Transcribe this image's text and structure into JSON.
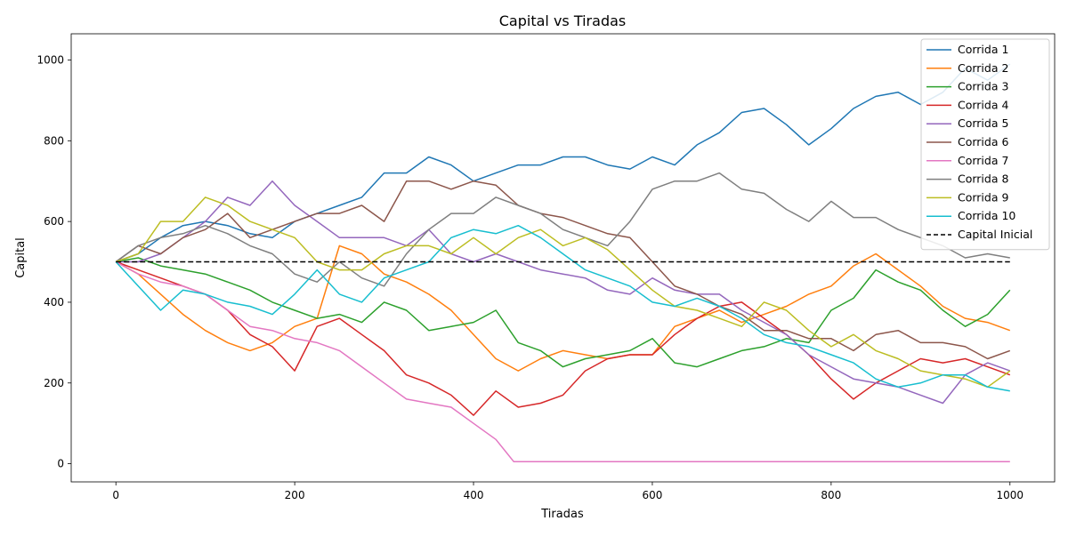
{
  "chart_data": {
    "type": "line",
    "title": "Capital vs Tiradas",
    "xlabel": "Tiradas",
    "ylabel": "Capital",
    "xlim": [
      -50,
      1050
    ],
    "ylim": [
      -45,
      1065
    ],
    "xticks": [
      0,
      200,
      400,
      600,
      800,
      1000
    ],
    "yticks": [
      0,
      200,
      400,
      600,
      800,
      1000
    ],
    "grid": false,
    "legend_position": "top-right",
    "reference_line": {
      "name": "Capital Inicial",
      "y": 500,
      "color": "#000000",
      "style": "dashed"
    },
    "series": [
      {
        "name": "Corrida 1",
        "color": "#1f77b4",
        "x": [
          0,
          25,
          50,
          75,
          100,
          125,
          150,
          175,
          200,
          225,
          250,
          275,
          300,
          325,
          350,
          375,
          400,
          425,
          450,
          475,
          500,
          525,
          550,
          575,
          600,
          625,
          650,
          675,
          700,
          725,
          750,
          775,
          800,
          825,
          850,
          875,
          900,
          925,
          950,
          975,
          1000
        ],
        "values": [
          500,
          520,
          560,
          590,
          600,
          590,
          570,
          560,
          600,
          620,
          640,
          660,
          720,
          720,
          760,
          740,
          700,
          720,
          740,
          740,
          760,
          760,
          740,
          730,
          760,
          740,
          790,
          820,
          870,
          880,
          840,
          790,
          830,
          880,
          910,
          920,
          890,
          920,
          980,
          950,
          990
        ]
      },
      {
        "name": "Corrida 2",
        "color": "#ff7f0e",
        "x": [
          0,
          25,
          50,
          75,
          100,
          125,
          150,
          175,
          200,
          225,
          250,
          275,
          300,
          325,
          350,
          375,
          400,
          425,
          450,
          475,
          500,
          525,
          550,
          575,
          600,
          625,
          650,
          675,
          700,
          725,
          750,
          775,
          800,
          825,
          850,
          875,
          900,
          925,
          950,
          975,
          1000
        ],
        "values": [
          500,
          470,
          420,
          370,
          330,
          300,
          280,
          300,
          340,
          360,
          540,
          520,
          470,
          450,
          420,
          380,
          320,
          260,
          230,
          260,
          280,
          270,
          260,
          270,
          270,
          340,
          360,
          380,
          350,
          370,
          390,
          420,
          440,
          490,
          520,
          480,
          440,
          390,
          360,
          350,
          330
        ]
      },
      {
        "name": "Corrida 3",
        "color": "#2ca02c",
        "x": [
          0,
          25,
          50,
          75,
          100,
          125,
          150,
          175,
          200,
          225,
          250,
          275,
          300,
          325,
          350,
          375,
          400,
          425,
          450,
          475,
          500,
          525,
          550,
          575,
          600,
          625,
          650,
          675,
          700,
          725,
          750,
          775,
          800,
          825,
          850,
          875,
          900,
          925,
          950,
          975,
          1000
        ],
        "values": [
          500,
          510,
          490,
          480,
          470,
          450,
          430,
          400,
          380,
          360,
          370,
          350,
          400,
          380,
          330,
          340,
          350,
          380,
          300,
          280,
          240,
          260,
          270,
          280,
          310,
          250,
          240,
          260,
          280,
          290,
          310,
          300,
          380,
          410,
          480,
          450,
          430,
          380,
          340,
          370,
          430
        ]
      },
      {
        "name": "Corrida 4",
        "color": "#d62728",
        "x": [
          0,
          25,
          50,
          75,
          100,
          125,
          150,
          175,
          200,
          225,
          250,
          275,
          300,
          325,
          350,
          375,
          400,
          425,
          450,
          475,
          500,
          525,
          550,
          575,
          600,
          625,
          650,
          675,
          700,
          725,
          750,
          775,
          800,
          825,
          850,
          875,
          900,
          925,
          950,
          975,
          1000
        ],
        "values": [
          500,
          480,
          460,
          440,
          420,
          380,
          320,
          290,
          230,
          340,
          360,
          320,
          280,
          220,
          200,
          170,
          120,
          180,
          140,
          150,
          170,
          230,
          260,
          270,
          270,
          320,
          360,
          390,
          400,
          360,
          320,
          270,
          210,
          160,
          200,
          230,
          260,
          250,
          260,
          240,
          220
        ]
      },
      {
        "name": "Corrida 5",
        "color": "#9467bd",
        "x": [
          0,
          25,
          50,
          75,
          100,
          125,
          150,
          175,
          200,
          225,
          250,
          275,
          300,
          325,
          350,
          375,
          400,
          425,
          450,
          475,
          500,
          525,
          550,
          575,
          600,
          625,
          650,
          675,
          700,
          725,
          750,
          775,
          800,
          825,
          850,
          875,
          900,
          925,
          950,
          975,
          1000
        ],
        "values": [
          500,
          500,
          520,
          560,
          600,
          660,
          640,
          700,
          640,
          600,
          560,
          560,
          560,
          540,
          580,
          520,
          500,
          520,
          500,
          480,
          470,
          460,
          430,
          420,
          460,
          430,
          420,
          420,
          380,
          350,
          320,
          270,
          240,
          210,
          200,
          190,
          170,
          150,
          220,
          250,
          230
        ]
      },
      {
        "name": "Corrida 6",
        "color": "#8c564b",
        "x": [
          0,
          25,
          50,
          75,
          100,
          125,
          150,
          175,
          200,
          225,
          250,
          275,
          300,
          325,
          350,
          375,
          400,
          425,
          450,
          475,
          500,
          525,
          550,
          575,
          600,
          625,
          650,
          675,
          700,
          725,
          750,
          775,
          800,
          825,
          850,
          875,
          900,
          925,
          950,
          975,
          1000
        ],
        "values": [
          500,
          540,
          520,
          560,
          580,
          620,
          560,
          580,
          600,
          620,
          620,
          640,
          600,
          700,
          700,
          680,
          700,
          690,
          640,
          620,
          610,
          590,
          570,
          560,
          500,
          440,
          420,
          390,
          370,
          330,
          330,
          310,
          310,
          280,
          320,
          330,
          300,
          300,
          290,
          260,
          280
        ]
      },
      {
        "name": "Corrida 7",
        "color": "#e377c2",
        "x": [
          0,
          25,
          50,
          75,
          100,
          125,
          150,
          175,
          200,
          225,
          250,
          275,
          300,
          325,
          350,
          375,
          400,
          425,
          445,
          460,
          500,
          600,
          700,
          800,
          900,
          1000
        ],
        "values": [
          500,
          470,
          450,
          440,
          420,
          380,
          340,
          330,
          310,
          300,
          280,
          240,
          200,
          160,
          150,
          140,
          100,
          60,
          5,
          5,
          5,
          5,
          5,
          5,
          5,
          5
        ]
      },
      {
        "name": "Corrida 8",
        "color": "#7f7f7f",
        "x": [
          0,
          25,
          50,
          75,
          100,
          125,
          150,
          175,
          200,
          225,
          250,
          275,
          300,
          325,
          350,
          375,
          400,
          425,
          450,
          475,
          500,
          525,
          550,
          575,
          600,
          625,
          650,
          675,
          700,
          725,
          750,
          775,
          800,
          825,
          850,
          875,
          900,
          925,
          950,
          975,
          1000
        ],
        "values": [
          500,
          540,
          560,
          570,
          590,
          570,
          540,
          520,
          470,
          450,
          500,
          460,
          440,
          520,
          580,
          620,
          620,
          660,
          640,
          620,
          580,
          560,
          540,
          600,
          680,
          700,
          700,
          720,
          680,
          670,
          630,
          600,
          650,
          610,
          610,
          580,
          560,
          540,
          510,
          520,
          510
        ]
      },
      {
        "name": "Corrida 9",
        "color": "#bcbd22",
        "x": [
          0,
          25,
          50,
          75,
          100,
          125,
          150,
          175,
          200,
          225,
          250,
          275,
          300,
          325,
          350,
          375,
          400,
          425,
          450,
          475,
          500,
          525,
          550,
          575,
          600,
          625,
          650,
          675,
          700,
          725,
          750,
          775,
          800,
          825,
          850,
          875,
          900,
          925,
          950,
          975,
          1000
        ],
        "values": [
          500,
          520,
          600,
          600,
          660,
          640,
          600,
          580,
          560,
          500,
          480,
          480,
          520,
          540,
          540,
          520,
          560,
          520,
          560,
          580,
          540,
          560,
          530,
          480,
          430,
          390,
          380,
          360,
          340,
          400,
          380,
          330,
          290,
          320,
          280,
          260,
          230,
          220,
          210,
          190,
          230
        ]
      },
      {
        "name": "Corrida 10",
        "color": "#17becf",
        "x": [
          0,
          25,
          50,
          75,
          100,
          125,
          150,
          175,
          200,
          225,
          250,
          275,
          300,
          325,
          350,
          375,
          400,
          425,
          450,
          475,
          500,
          525,
          550,
          575,
          600,
          625,
          650,
          675,
          700,
          725,
          750,
          775,
          800,
          825,
          850,
          875,
          900,
          925,
          950,
          975,
          1000
        ],
        "values": [
          500,
          440,
          380,
          430,
          420,
          400,
          390,
          370,
          420,
          480,
          420,
          400,
          460,
          480,
          500,
          560,
          580,
          570,
          590,
          560,
          520,
          480,
          460,
          440,
          400,
          390,
          410,
          390,
          360,
          320,
          300,
          290,
          270,
          250,
          210,
          190,
          200,
          220,
          220,
          190,
          180
        ]
      }
    ]
  }
}
